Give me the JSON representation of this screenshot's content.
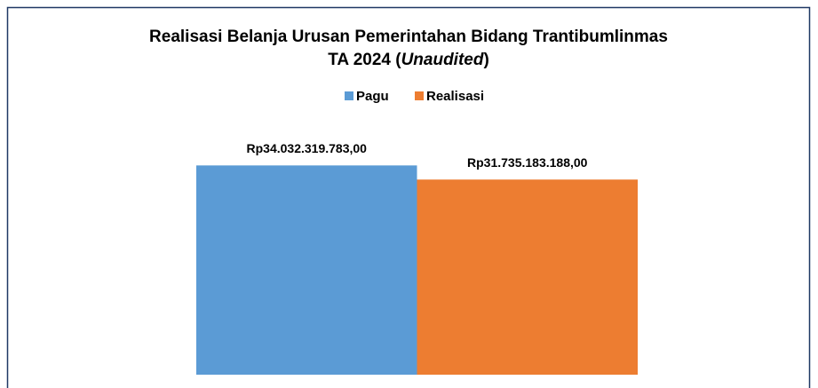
{
  "chart_data": {
    "type": "bar",
    "title": "Realisasi Belanja Urusan Pemerintahan Bidang Trantibumlinmas",
    "subtitle_parts": [
      "TA 2024 (",
      "Unaudited",
      ")"
    ],
    "categories": [
      null
    ],
    "series": [
      {
        "name": "Pagu",
        "color": "#5b9bd5",
        "values": [
          34032319783
        ],
        "value_labels": [
          "Rp34.032.319.783,00"
        ]
      },
      {
        "name": "Realisasi",
        "color": "#ed7d31",
        "values": [
          31735183188
        ],
        "value_labels": [
          "Rp31.735.183.188,00"
        ]
      }
    ],
    "ylim": [
      0,
      40000000000
    ],
    "legend": "top"
  }
}
